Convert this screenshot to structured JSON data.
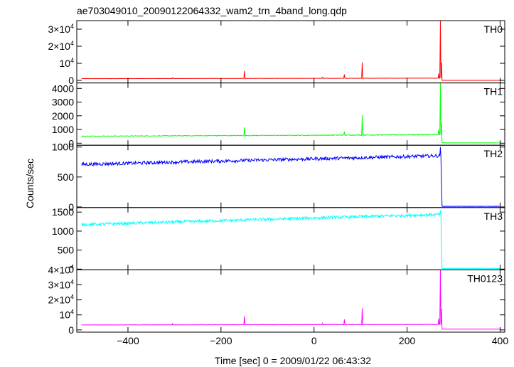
{
  "title": "ae703049010_20090122064332_wam2_trn_4band_long.qdp",
  "xlabel": "Time [sec] 0 = 2009/01/22 06:43:32",
  "ylabel": "Counts/sec",
  "chart_data": {
    "type": "line",
    "title": "ae703049010_20090122064332_wam2_trn_4band_long.qdp",
    "xlabel": "Time [sec] 0 = 2009/01/22 06:43:32",
    "ylabel": "Counts/sec",
    "xlim": [
      -510,
      410
    ],
    "x_ticks": [
      -400,
      -200,
      0,
      200,
      400
    ],
    "x_tick_labels": [
      "−400",
      "−200",
      "0",
      "200",
      "400"
    ],
    "grid": false,
    "legend": "none",
    "panels": [
      {
        "name": "TH0",
        "color": "#ff0000",
        "ylim": [
          -1500,
          35000
        ],
        "y_ticks": [
          0,
          10000,
          20000,
          30000
        ],
        "y_tick_labels": [
          {
            "mantissa": "0",
            "exp": ""
          },
          {
            "mantissa": "10",
            "exp": "4"
          },
          {
            "mantissa": "2×10",
            "exp": "4"
          },
          {
            "mantissa": "3×10",
            "exp": "4"
          }
        ],
        "base_start": 1000,
        "base_end": 1300,
        "noise": 60,
        "post_level": 0,
        "spikes": [
          [
            -305,
            1600
          ],
          [
            -150,
            5500
          ],
          [
            18,
            1800
          ],
          [
            65,
            3500
          ],
          [
            103,
            10500
          ],
          [
            268,
            4000
          ],
          [
            272,
            35000
          ],
          [
            274,
            10500
          ]
        ]
      },
      {
        "name": "TH1",
        "color": "#00ff00",
        "ylim": [
          -150,
          4400
        ],
        "y_ticks": [
          0,
          1000,
          2000,
          3000,
          4000
        ],
        "y_tick_labels": [
          {
            "mantissa": "0",
            "exp": ""
          },
          {
            "mantissa": "1000",
            "exp": ""
          },
          {
            "mantissa": "2000",
            "exp": ""
          },
          {
            "mantissa": "3000",
            "exp": ""
          },
          {
            "mantissa": "4000",
            "exp": ""
          }
        ],
        "base_start": 510,
        "base_end": 620,
        "noise": 25,
        "post_level": 25,
        "spikes": [
          [
            -150,
            1150
          ],
          [
            65,
            850
          ],
          [
            103,
            2050
          ],
          [
            268,
            1000
          ],
          [
            272,
            4400
          ],
          [
            274,
            1500
          ]
        ]
      },
      {
        "name": "TH2",
        "color": "#0000ff",
        "ylim": [
          -10,
          1030
        ],
        "y_ticks": [
          0,
          500,
          1000
        ],
        "y_tick_labels": [
          {
            "mantissa": "0",
            "exp": ""
          },
          {
            "mantissa": "500",
            "exp": ""
          },
          {
            "mantissa": "1000",
            "exp": ""
          }
        ],
        "base_start": 710,
        "base_end": 855,
        "noise": 28,
        "post_level": 10,
        "spikes": [
          [
            272,
            1000
          ],
          [
            274,
            400
          ]
        ]
      },
      {
        "name": "TH3",
        "color": "#00ffff",
        "ylim": [
          -20,
          1620
        ],
        "y_ticks": [
          0,
          500,
          1000,
          1500
        ],
        "y_tick_labels": [
          {
            "mantissa": "0",
            "exp": ""
          },
          {
            "mantissa": "500",
            "exp": ""
          },
          {
            "mantissa": "1000",
            "exp": ""
          },
          {
            "mantissa": "1500",
            "exp": ""
          }
        ],
        "base_start": 1170,
        "base_end": 1440,
        "noise": 38,
        "post_level": 20,
        "spikes": [
          [
            272,
            1550
          ],
          [
            274,
            600
          ]
        ]
      },
      {
        "name": "TH0123",
        "color": "#ff00ff",
        "ylim": [
          -1500,
          40000
        ],
        "y_ticks": [
          0,
          10000,
          20000,
          30000,
          40000
        ],
        "y_tick_labels": [
          {
            "mantissa": "0",
            "exp": ""
          },
          {
            "mantissa": "10",
            "exp": "4"
          },
          {
            "mantissa": "2×10",
            "exp": "4"
          },
          {
            "mantissa": "3×10",
            "exp": "4"
          },
          {
            "mantissa": "4×10",
            "exp": "4"
          }
        ],
        "base_start": 3300,
        "base_end": 3600,
        "noise": 90,
        "post_level": 500,
        "spikes": [
          [
            -305,
            4200
          ],
          [
            -150,
            9000
          ],
          [
            18,
            4500
          ],
          [
            65,
            7000
          ],
          [
            103,
            14500
          ],
          [
            268,
            7500
          ],
          [
            272,
            40000
          ],
          [
            274,
            14000
          ]
        ]
      }
    ],
    "drop_time": 275
  }
}
